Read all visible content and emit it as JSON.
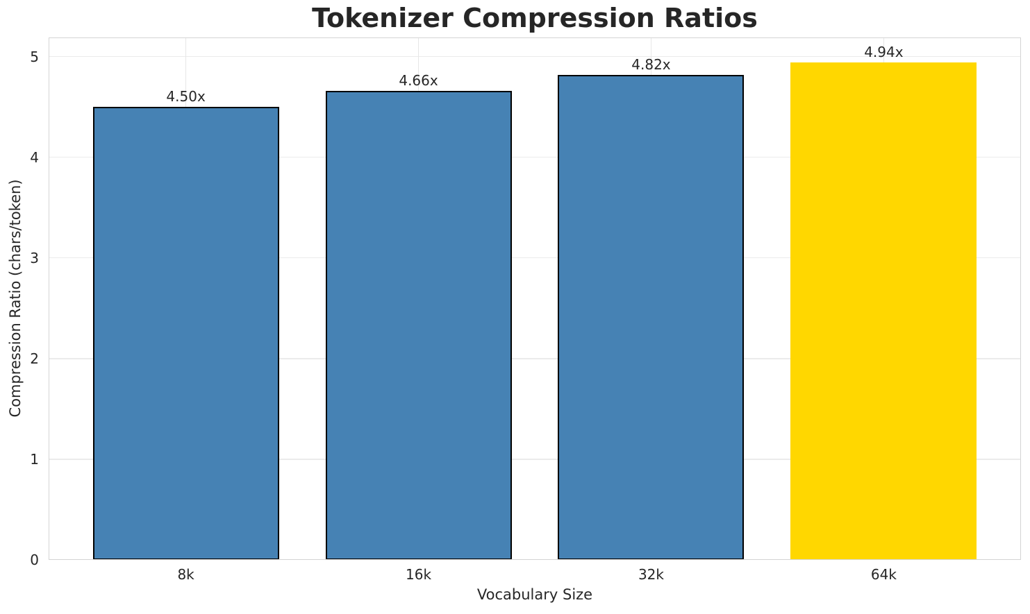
{
  "chart_data": {
    "type": "bar",
    "title": "Tokenizer Compression Ratios",
    "xlabel": "Vocabulary Size",
    "ylabel": "Compression Ratio (chars/token)",
    "categories": [
      "8k",
      "16k",
      "32k",
      "64k"
    ],
    "values": [
      4.5,
      4.66,
      4.82,
      4.94
    ],
    "bar_labels": [
      "4.50x",
      "4.66x",
      "4.82x",
      "4.94x"
    ],
    "yticks": [
      0,
      1,
      2,
      3,
      4,
      5
    ],
    "ytick_labels": [
      "0",
      "1",
      "2",
      "3",
      "4",
      "5"
    ],
    "ylim": [
      0,
      5.19
    ],
    "xlim": [
      -0.59,
      3.59
    ],
    "bar_width": 0.8,
    "grid": true,
    "legend": "none",
    "highlight_index": 3,
    "colors": {
      "bar": "#4682B4",
      "highlight": "#FFD700",
      "bar_edge": "#000000",
      "grid": "#EBEBEB",
      "spine": "#D4D4D4",
      "text": "#262626",
      "background": "#FFFFFF"
    }
  }
}
